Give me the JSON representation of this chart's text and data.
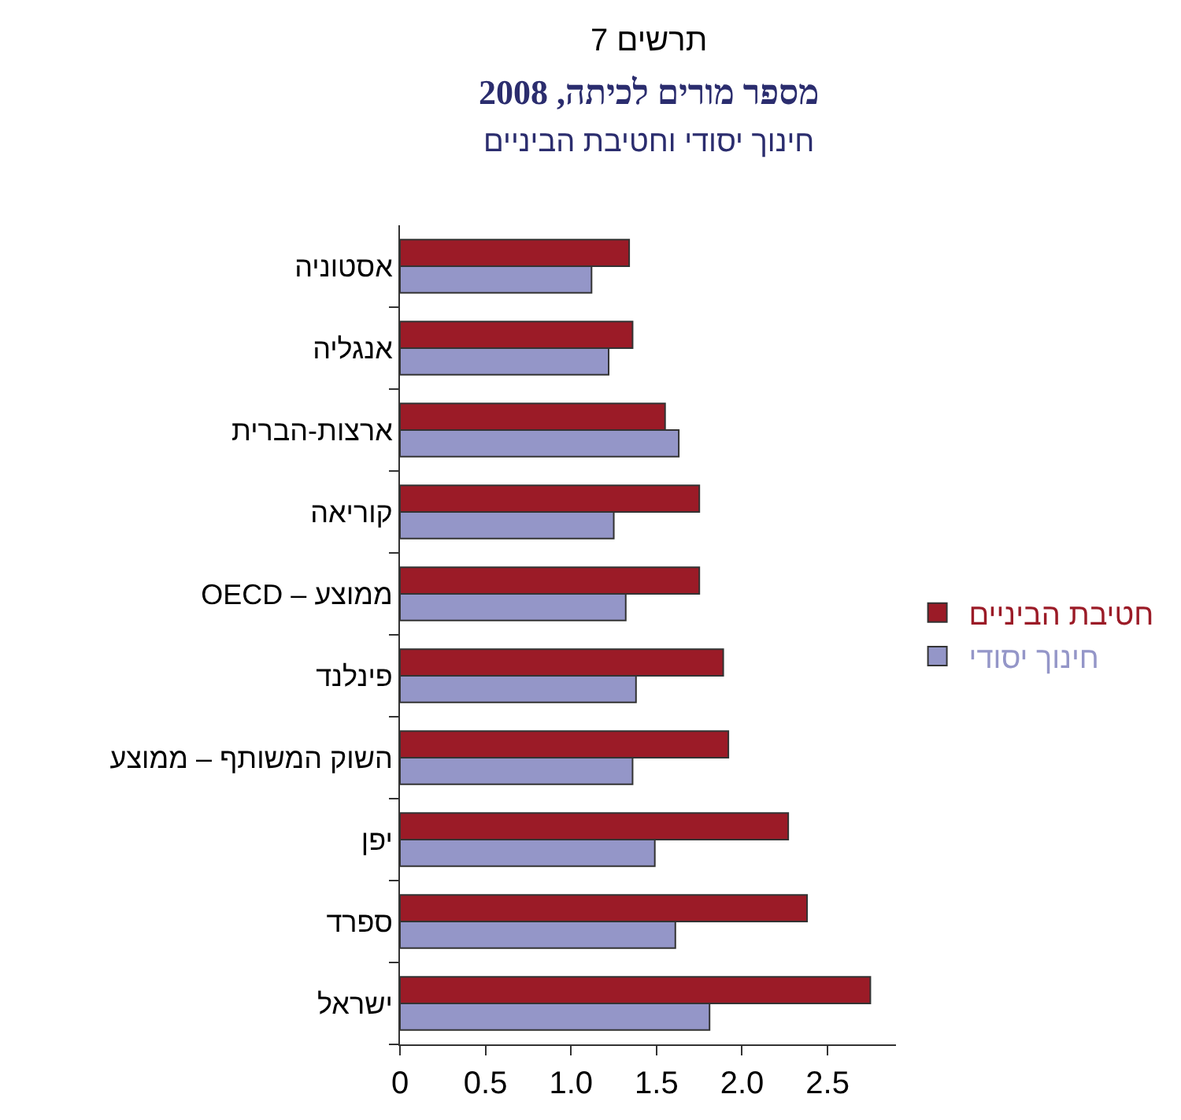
{
  "chart_data": {
    "type": "bar",
    "orientation": "horizontal",
    "title": "תרשים 7",
    "subtitle": "מספר מורים לכיתה, 2008",
    "annotations": [
      "חינוך יסודי וחטיבת הביניים"
    ],
    "categories": [
      "אסטוניה",
      "אנגליה",
      "ארצות-הברית",
      "קוריאה",
      "OECD – ממוצע",
      "פינלנד",
      "השוק המשותף – ממוצע",
      "יפן",
      "ספרד",
      "ישראל"
    ],
    "series": [
      {
        "name": "חטיבת הביניים",
        "color": "#9b1b27",
        "values": [
          1.34,
          1.36,
          1.55,
          1.75,
          1.75,
          1.89,
          1.92,
          2.27,
          2.38,
          2.75
        ]
      },
      {
        "name": "חינוך יסודי",
        "color": "#9496c8",
        "values": [
          1.12,
          1.22,
          1.63,
          1.25,
          1.32,
          1.38,
          1.36,
          1.49,
          1.61,
          1.81
        ]
      }
    ],
    "xlim": [
      0,
      2.9
    ],
    "xticks": [
      0,
      0.5,
      {
        "value": 1,
        "label": "1.0"
      },
      1.5,
      {
        "value": 2,
        "label": "2.0"
      },
      2.5
    ],
    "legend": "right"
  }
}
